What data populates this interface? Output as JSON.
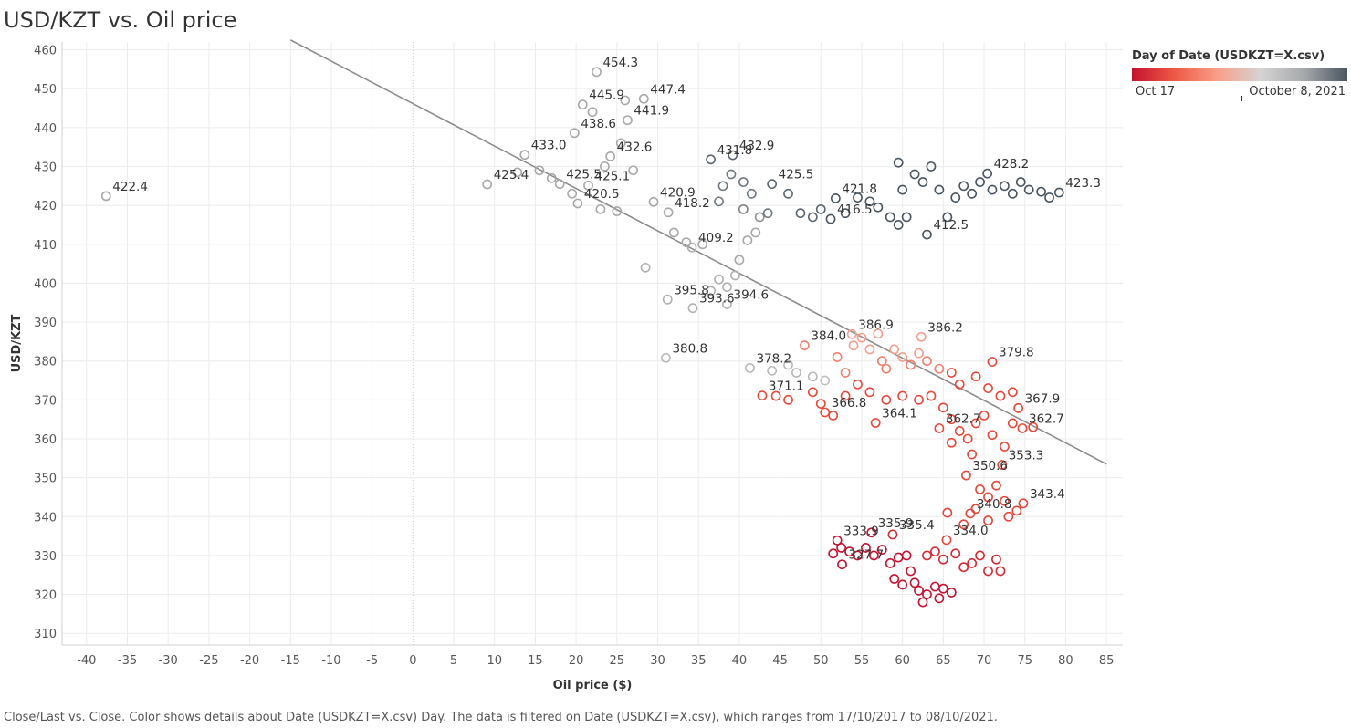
{
  "title": "USD/KZT vs. Oil price",
  "caption": "Close/Last vs. Close.  Color shows details about Date (USDKZT=X.csv) Day. The data is filtered on Date (USDKZT=X.csv), which ranges from 17/10/2017 to 08/10/2021.",
  "legend": {
    "title": "Day of Date (USDKZT=X.csv)",
    "min_label": "Oct 17",
    "max_label": "October 8, 2021",
    "colors": [
      "#c41230",
      "#ee5a45",
      "#f8a08a",
      "#d4d4d4",
      "#a6a8aa",
      "#4a5560"
    ]
  },
  "chart_data": {
    "type": "scatter",
    "xlabel": "Oil price ($)",
    "ylabel": "USD/KZT",
    "xlim": [
      -43,
      87
    ],
    "ylim": [
      307,
      462
    ],
    "xticks": [
      -40,
      -35,
      -30,
      -25,
      -20,
      -15,
      -10,
      -5,
      0,
      5,
      10,
      15,
      20,
      25,
      30,
      35,
      40,
      45,
      50,
      55,
      60,
      65,
      70,
      75,
      80,
      85
    ],
    "yticks": [
      310,
      320,
      330,
      340,
      350,
      360,
      370,
      380,
      390,
      400,
      410,
      420,
      430,
      440,
      450,
      460
    ],
    "grid": true,
    "legend_position": "top-right",
    "trend_line": {
      "x1": -15,
      "y1": 462.5,
      "x2": 85,
      "y2": 353.5
    },
    "points": [
      {
        "x": -37.6,
        "y": 422.4,
        "label": "422.4",
        "color": "#a8a8a8"
      },
      {
        "x": 22.5,
        "y": 454.3,
        "label": "454.3",
        "color": "#a8a8a8"
      },
      {
        "x": 28.3,
        "y": 447.4,
        "label": "447.4",
        "color": "#a8a8a8"
      },
      {
        "x": 20.8,
        "y": 445.9,
        "label": "445.9",
        "color": "#a8a8a8"
      },
      {
        "x": 26.3,
        "y": 441.9,
        "label": "441.9",
        "color": "#a8a8a8"
      },
      {
        "x": 19.8,
        "y": 438.6,
        "label": "438.6",
        "color": "#a8a8a8"
      },
      {
        "x": 13.7,
        "y": 433.0,
        "label": "433.0",
        "color": "#a8a8a8"
      },
      {
        "x": 21.5,
        "y": 425.1,
        "label": "425.1",
        "color": "#a8a8a8"
      },
      {
        "x": 24.2,
        "y": 432.6,
        "label": "432.6",
        "color": "#a8a8a8"
      },
      {
        "x": 9.1,
        "y": 425.4,
        "label": "425.4",
        "color": "#a8a8a8"
      },
      {
        "x": 18.0,
        "y": 425.5,
        "label": "425.5",
        "color": "#a8a8a8"
      },
      {
        "x": 29.5,
        "y": 420.9,
        "label": "420.9",
        "color": "#a8a8a8"
      },
      {
        "x": 20.2,
        "y": 420.5,
        "label": "420.5",
        "color": "#a8a8a8"
      },
      {
        "x": 31.3,
        "y": 418.2,
        "label": "418.2",
        "color": "#a8a8a8"
      },
      {
        "x": 36.5,
        "y": 431.8,
        "label": "431.8",
        "color": "#5c6670"
      },
      {
        "x": 39.2,
        "y": 432.9,
        "label": "432.9",
        "color": "#5c6670"
      },
      {
        "x": 44.0,
        "y": 425.5,
        "label": "425.5",
        "color": "#5c6670"
      },
      {
        "x": 51.8,
        "y": 421.8,
        "label": "421.8",
        "color": "#4a5560"
      },
      {
        "x": 51.2,
        "y": 416.5,
        "label": "416.5",
        "color": "#4a5560"
      },
      {
        "x": 63.0,
        "y": 412.5,
        "label": "412.5",
        "color": "#4a5560"
      },
      {
        "x": 70.4,
        "y": 428.2,
        "label": "428.2",
        "color": "#4a5560"
      },
      {
        "x": 79.2,
        "y": 423.3,
        "label": "423.3",
        "color": "#4a5560"
      },
      {
        "x": 34.2,
        "y": 409.2,
        "label": "409.2",
        "color": "#b0b0b0"
      },
      {
        "x": 31.2,
        "y": 395.8,
        "label": "395.8",
        "color": "#b0b0b0"
      },
      {
        "x": 34.3,
        "y": 393.6,
        "label": "393.6",
        "color": "#b0b0b0"
      },
      {
        "x": 38.5,
        "y": 394.6,
        "label": "394.6",
        "color": "#b0b0b0"
      },
      {
        "x": 31.0,
        "y": 380.8,
        "label": "380.8",
        "color": "#b8b8b8"
      },
      {
        "x": 41.3,
        "y": 378.2,
        "label": "378.2",
        "color": "#b8b8b8"
      },
      {
        "x": 53.8,
        "y": 386.9,
        "label": "386.9",
        "color": "#f5a08c"
      },
      {
        "x": 48.0,
        "y": 384.0,
        "label": "384.0",
        "color": "#f08070"
      },
      {
        "x": 62.3,
        "y": 386.2,
        "label": "386.2",
        "color": "#f5a08c"
      },
      {
        "x": 71.0,
        "y": 379.8,
        "label": "379.8",
        "color": "#e8493a"
      },
      {
        "x": 42.8,
        "y": 371.1,
        "label": "371.1",
        "color": "#e8493a"
      },
      {
        "x": 50.5,
        "y": 366.8,
        "label": "366.8",
        "color": "#e8493a"
      },
      {
        "x": 56.7,
        "y": 364.1,
        "label": "364.1",
        "color": "#e8493a"
      },
      {
        "x": 64.5,
        "y": 362.7,
        "label": "362.7",
        "color": "#e8493a"
      },
      {
        "x": 74.2,
        "y": 367.9,
        "label": "367.9",
        "color": "#e8493a"
      },
      {
        "x": 74.7,
        "y": 362.7,
        "label": "362.7",
        "color": "#e8493a"
      },
      {
        "x": 72.2,
        "y": 353.3,
        "label": "353.3",
        "color": "#e8493a"
      },
      {
        "x": 67.8,
        "y": 350.6,
        "label": "350.6",
        "color": "#e3463a"
      },
      {
        "x": 68.3,
        "y": 340.8,
        "label": "340.8",
        "color": "#e3463a"
      },
      {
        "x": 74.8,
        "y": 343.4,
        "label": "343.4",
        "color": "#e3463a"
      },
      {
        "x": 52.0,
        "y": 333.9,
        "label": "333.9",
        "color": "#c41230"
      },
      {
        "x": 56.2,
        "y": 335.9,
        "label": "335.9",
        "color": "#c41230"
      },
      {
        "x": 58.8,
        "y": 335.4,
        "label": "335.4",
        "color": "#d42a35"
      },
      {
        "x": 65.4,
        "y": 334.0,
        "label": "334.0",
        "color": "#e3463a"
      },
      {
        "x": 52.6,
        "y": 327.7,
        "label": "327.7",
        "color": "#c41230"
      },
      {
        "x": 12.8,
        "y": 428.5,
        "color": "#a8a8a8"
      },
      {
        "x": 15.5,
        "y": 429.0,
        "color": "#a8a8a8"
      },
      {
        "x": 17.0,
        "y": 427.0,
        "color": "#a8a8a8"
      },
      {
        "x": 19.5,
        "y": 423.0,
        "color": "#a8a8a8"
      },
      {
        "x": 23.5,
        "y": 430.0,
        "color": "#a8a8a8"
      },
      {
        "x": 25.5,
        "y": 436.0,
        "color": "#a8a8a8"
      },
      {
        "x": 22.0,
        "y": 444.0,
        "color": "#a8a8a8"
      },
      {
        "x": 26.0,
        "y": 447.0,
        "color": "#a8a8a8"
      },
      {
        "x": 27.0,
        "y": 429.0,
        "color": "#a8a8a8"
      },
      {
        "x": 25.0,
        "y": 418.5,
        "color": "#a8a8a8"
      },
      {
        "x": 23.0,
        "y": 419.0,
        "color": "#a8a8a8"
      },
      {
        "x": 28.5,
        "y": 404.0,
        "color": "#b0b0b0"
      },
      {
        "x": 32.0,
        "y": 413.0,
        "color": "#a8a8a8"
      },
      {
        "x": 33.5,
        "y": 410.5,
        "color": "#a8a8a8"
      },
      {
        "x": 35.5,
        "y": 410.0,
        "color": "#a8a8a8"
      },
      {
        "x": 36.5,
        "y": 398.0,
        "color": "#b0b0b0"
      },
      {
        "x": 37.5,
        "y": 401.0,
        "color": "#b0b0b0"
      },
      {
        "x": 38.5,
        "y": 399.0,
        "color": "#b0b0b0"
      },
      {
        "x": 39.5,
        "y": 402.0,
        "color": "#b0b0b0"
      },
      {
        "x": 40.0,
        "y": 406.0,
        "color": "#a8a8a8"
      },
      {
        "x": 41.0,
        "y": 411.0,
        "color": "#a8a8a8"
      },
      {
        "x": 42.0,
        "y": 413.0,
        "color": "#a8a8a8"
      },
      {
        "x": 42.5,
        "y": 417.0,
        "color": "#909090"
      },
      {
        "x": 40.5,
        "y": 419.0,
        "color": "#808080"
      },
      {
        "x": 38.0,
        "y": 425.0,
        "color": "#707880"
      },
      {
        "x": 39.0,
        "y": 428.0,
        "color": "#707880"
      },
      {
        "x": 40.5,
        "y": 426.0,
        "color": "#707880"
      },
      {
        "x": 41.5,
        "y": 423.0,
        "color": "#707880"
      },
      {
        "x": 37.5,
        "y": 421.0,
        "color": "#707880"
      },
      {
        "x": 43.5,
        "y": 418.0,
        "color": "#707880"
      },
      {
        "x": 46.0,
        "y": 423.0,
        "color": "#5c6670"
      },
      {
        "x": 47.5,
        "y": 418.0,
        "color": "#5c6670"
      },
      {
        "x": 49.0,
        "y": 417.0,
        "color": "#5c6670"
      },
      {
        "x": 50.0,
        "y": 419.0,
        "color": "#5c6670"
      },
      {
        "x": 53.0,
        "y": 418.0,
        "color": "#4a5560"
      },
      {
        "x": 54.5,
        "y": 422.0,
        "color": "#4a5560"
      },
      {
        "x": 56.0,
        "y": 421.0,
        "color": "#4a5560"
      },
      {
        "x": 57.0,
        "y": 419.5,
        "color": "#4a5560"
      },
      {
        "x": 58.5,
        "y": 417.0,
        "color": "#4a5560"
      },
      {
        "x": 59.5,
        "y": 415.0,
        "color": "#4a5560"
      },
      {
        "x": 60.5,
        "y": 417.0,
        "color": "#4a5560"
      },
      {
        "x": 60.0,
        "y": 424.0,
        "color": "#4a5560"
      },
      {
        "x": 59.5,
        "y": 431.0,
        "color": "#4a5560"
      },
      {
        "x": 61.5,
        "y": 428.0,
        "color": "#4a5560"
      },
      {
        "x": 62.5,
        "y": 426.0,
        "color": "#4a5560"
      },
      {
        "x": 63.5,
        "y": 430.0,
        "color": "#4a5560"
      },
      {
        "x": 64.5,
        "y": 424.0,
        "color": "#4a5560"
      },
      {
        "x": 65.5,
        "y": 417.0,
        "color": "#4a5560"
      },
      {
        "x": 66.5,
        "y": 422.0,
        "color": "#4a5560"
      },
      {
        "x": 67.5,
        "y": 425.0,
        "color": "#4a5560"
      },
      {
        "x": 68.5,
        "y": 423.0,
        "color": "#4a5560"
      },
      {
        "x": 69.5,
        "y": 426.0,
        "color": "#4a5560"
      },
      {
        "x": 71.0,
        "y": 424.0,
        "color": "#4a5560"
      },
      {
        "x": 72.5,
        "y": 425.0,
        "color": "#4a5560"
      },
      {
        "x": 73.5,
        "y": 423.0,
        "color": "#4a5560"
      },
      {
        "x": 74.5,
        "y": 426.0,
        "color": "#4a5560"
      },
      {
        "x": 75.5,
        "y": 424.0,
        "color": "#4a5560"
      },
      {
        "x": 77.0,
        "y": 423.5,
        "color": "#4a5560"
      },
      {
        "x": 78.0,
        "y": 422.0,
        "color": "#4a5560"
      },
      {
        "x": 44.0,
        "y": 377.5,
        "color": "#b8b8b8"
      },
      {
        "x": 46.0,
        "y": 379.0,
        "color": "#b8b8b8"
      },
      {
        "x": 47.0,
        "y": 377.0,
        "color": "#b8b8b8"
      },
      {
        "x": 49.0,
        "y": 376.0,
        "color": "#b8b8b8"
      },
      {
        "x": 50.5,
        "y": 375.0,
        "color": "#c0c0c0"
      },
      {
        "x": 52.0,
        "y": 381.0,
        "color": "#f08070"
      },
      {
        "x": 53.0,
        "y": 377.0,
        "color": "#f08070"
      },
      {
        "x": 54.0,
        "y": 384.0,
        "color": "#f5a08c"
      },
      {
        "x": 55.0,
        "y": 386.0,
        "color": "#f5a08c"
      },
      {
        "x": 56.0,
        "y": 383.0,
        "color": "#f5a08c"
      },
      {
        "x": 57.0,
        "y": 387.0,
        "color": "#f5a08c"
      },
      {
        "x": 57.5,
        "y": 380.0,
        "color": "#f08070"
      },
      {
        "x": 58.0,
        "y": 378.0,
        "color": "#f08070"
      },
      {
        "x": 59.0,
        "y": 383.0,
        "color": "#f5a08c"
      },
      {
        "x": 60.0,
        "y": 381.0,
        "color": "#f5a08c"
      },
      {
        "x": 61.0,
        "y": 379.0,
        "color": "#f08070"
      },
      {
        "x": 62.0,
        "y": 382.0,
        "color": "#f5a08c"
      },
      {
        "x": 63.0,
        "y": 380.0,
        "color": "#f08070"
      },
      {
        "x": 64.5,
        "y": 378.0,
        "color": "#f08070"
      },
      {
        "x": 66.0,
        "y": 377.0,
        "color": "#e8493a"
      },
      {
        "x": 67.0,
        "y": 374.0,
        "color": "#e8493a"
      },
      {
        "x": 69.0,
        "y": 376.0,
        "color": "#e8493a"
      },
      {
        "x": 70.5,
        "y": 373.0,
        "color": "#e8493a"
      },
      {
        "x": 72.0,
        "y": 371.0,
        "color": "#e8493a"
      },
      {
        "x": 73.5,
        "y": 372.0,
        "color": "#e8493a"
      },
      {
        "x": 44.5,
        "y": 371.0,
        "color": "#e8493a"
      },
      {
        "x": 46.0,
        "y": 370.0,
        "color": "#e8493a"
      },
      {
        "x": 49.0,
        "y": 372.0,
        "color": "#e8493a"
      },
      {
        "x": 50.0,
        "y": 369.0,
        "color": "#e8493a"
      },
      {
        "x": 51.5,
        "y": 366.0,
        "color": "#e8493a"
      },
      {
        "x": 53.0,
        "y": 371.0,
        "color": "#e8493a"
      },
      {
        "x": 54.5,
        "y": 374.0,
        "color": "#e8493a"
      },
      {
        "x": 56.0,
        "y": 372.0,
        "color": "#e8493a"
      },
      {
        "x": 58.0,
        "y": 370.0,
        "color": "#e8493a"
      },
      {
        "x": 60.0,
        "y": 371.0,
        "color": "#e8493a"
      },
      {
        "x": 62.0,
        "y": 370.0,
        "color": "#e8493a"
      },
      {
        "x": 63.5,
        "y": 371.0,
        "color": "#e8493a"
      },
      {
        "x": 65.0,
        "y": 368.0,
        "color": "#e8493a"
      },
      {
        "x": 66.0,
        "y": 365.0,
        "color": "#e8493a"
      },
      {
        "x": 67.0,
        "y": 362.0,
        "color": "#e8493a"
      },
      {
        "x": 68.0,
        "y": 360.0,
        "color": "#e8493a"
      },
      {
        "x": 69.0,
        "y": 364.0,
        "color": "#e8493a"
      },
      {
        "x": 70.0,
        "y": 366.0,
        "color": "#e8493a"
      },
      {
        "x": 71.0,
        "y": 361.0,
        "color": "#e8493a"
      },
      {
        "x": 72.5,
        "y": 358.0,
        "color": "#e8493a"
      },
      {
        "x": 73.5,
        "y": 364.0,
        "color": "#e8493a"
      },
      {
        "x": 76.0,
        "y": 363.0,
        "color": "#e8493a"
      },
      {
        "x": 66.0,
        "y": 359.0,
        "color": "#e8493a"
      },
      {
        "x": 68.5,
        "y": 356.0,
        "color": "#e3463a"
      },
      {
        "x": 69.5,
        "y": 347.0,
        "color": "#e3463a"
      },
      {
        "x": 70.5,
        "y": 345.0,
        "color": "#e3463a"
      },
      {
        "x": 71.5,
        "y": 348.0,
        "color": "#e3463a"
      },
      {
        "x": 72.5,
        "y": 344.0,
        "color": "#e3463a"
      },
      {
        "x": 69.0,
        "y": 342.0,
        "color": "#e3463a"
      },
      {
        "x": 67.5,
        "y": 338.0,
        "color": "#e3463a"
      },
      {
        "x": 65.5,
        "y": 341.0,
        "color": "#e3463a"
      },
      {
        "x": 73.0,
        "y": 340.0,
        "color": "#e3463a"
      },
      {
        "x": 74.0,
        "y": 341.5,
        "color": "#e3463a"
      },
      {
        "x": 70.5,
        "y": 339.0,
        "color": "#e3463a"
      },
      {
        "x": 63.0,
        "y": 330.0,
        "color": "#d42a35"
      },
      {
        "x": 64.0,
        "y": 331.0,
        "color": "#d42a35"
      },
      {
        "x": 65.0,
        "y": 329.0,
        "color": "#d42a35"
      },
      {
        "x": 66.5,
        "y": 330.5,
        "color": "#d42a35"
      },
      {
        "x": 67.5,
        "y": 327.0,
        "color": "#d42a35"
      },
      {
        "x": 68.5,
        "y": 328.0,
        "color": "#d42a35"
      },
      {
        "x": 69.5,
        "y": 330.0,
        "color": "#d42a35"
      },
      {
        "x": 70.5,
        "y": 326.0,
        "color": "#d42a35"
      },
      {
        "x": 71.5,
        "y": 329.0,
        "color": "#d42a35"
      },
      {
        "x": 72.0,
        "y": 326.0,
        "color": "#d42a35"
      },
      {
        "x": 53.5,
        "y": 331.0,
        "color": "#c41230"
      },
      {
        "x": 54.5,
        "y": 330.0,
        "color": "#c41230"
      },
      {
        "x": 55.5,
        "y": 332.0,
        "color": "#c41230"
      },
      {
        "x": 56.5,
        "y": 330.0,
        "color": "#c41230"
      },
      {
        "x": 57.5,
        "y": 331.5,
        "color": "#c41230"
      },
      {
        "x": 58.5,
        "y": 328.0,
        "color": "#c41230"
      },
      {
        "x": 59.5,
        "y": 329.5,
        "color": "#c41230"
      },
      {
        "x": 60.5,
        "y": 330.0,
        "color": "#c41230"
      },
      {
        "x": 61.5,
        "y": 323.0,
        "color": "#c41230"
      },
      {
        "x": 62.0,
        "y": 321.0,
        "color": "#c41230"
      },
      {
        "x": 62.5,
        "y": 318.0,
        "color": "#c41230"
      },
      {
        "x": 63.0,
        "y": 320.0,
        "color": "#c41230"
      },
      {
        "x": 64.0,
        "y": 322.0,
        "color": "#c41230"
      },
      {
        "x": 64.5,
        "y": 319.0,
        "color": "#c41230"
      },
      {
        "x": 65.0,
        "y": 321.5,
        "color": "#c41230"
      },
      {
        "x": 66.0,
        "y": 320.5,
        "color": "#c41230"
      },
      {
        "x": 60.0,
        "y": 322.5,
        "color": "#c41230"
      },
      {
        "x": 61.0,
        "y": 326.0,
        "color": "#c41230"
      },
      {
        "x": 59.0,
        "y": 324.0,
        "color": "#c41230"
      },
      {
        "x": 51.5,
        "y": 330.5,
        "color": "#c41230"
      },
      {
        "x": 52.5,
        "y": 332.0,
        "color": "#c41230"
      }
    ]
  }
}
